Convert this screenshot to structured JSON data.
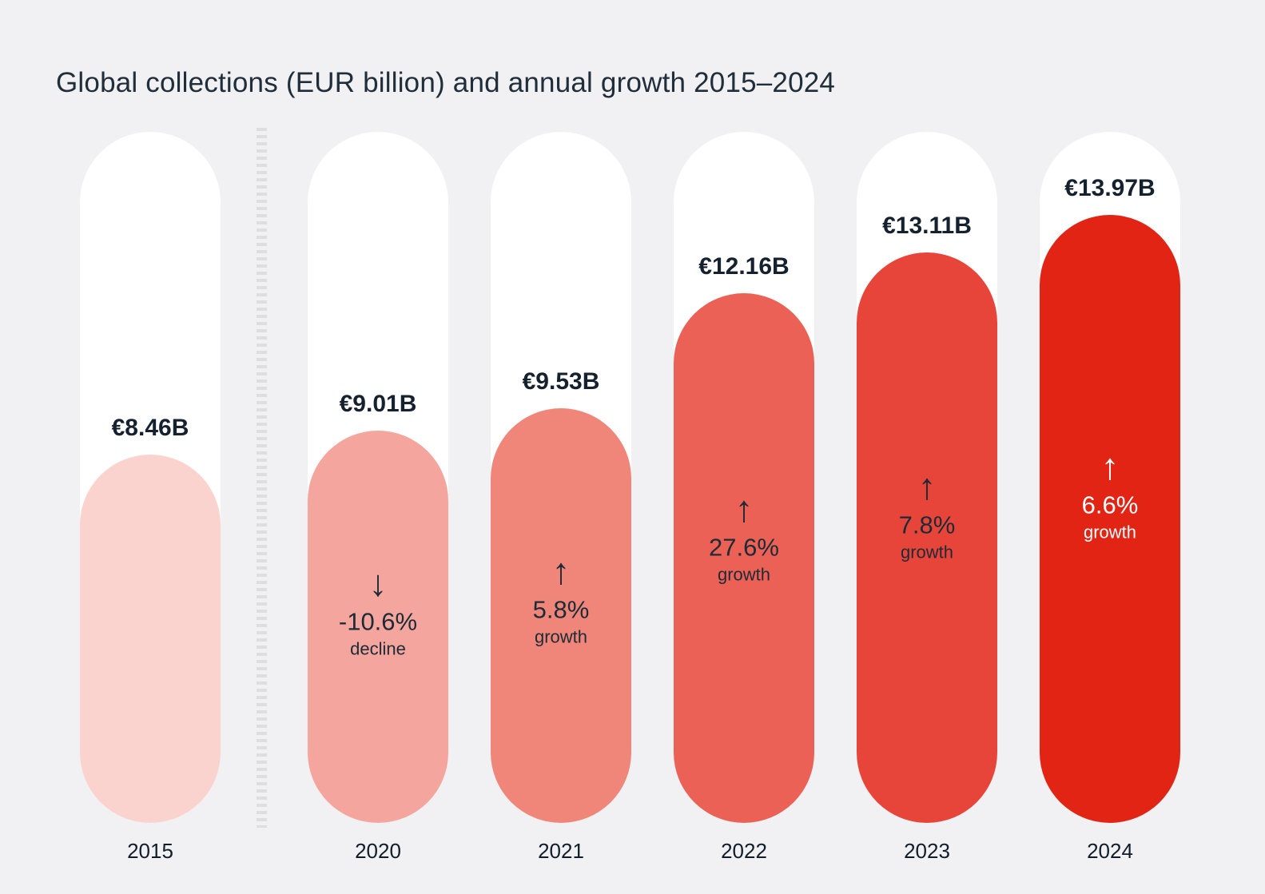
{
  "page": {
    "background_color": "#f1f0f2"
  },
  "title": "Global collections (EUR billion) and annual growth 2015–2024",
  "chart_data": {
    "type": "bar",
    "title": "Global collections (EUR billion) and annual growth 2015–2024",
    "unit": "EUR billion",
    "categories": [
      "2015",
      "2020",
      "2021",
      "2022",
      "2023",
      "2024"
    ],
    "values": [
      8.46,
      9.01,
      9.53,
      12.16,
      13.11,
      13.97
    ],
    "value_labels": [
      "€8.46B",
      "€9.01B",
      "€9.53B",
      "€12.16B",
      "€13.11B",
      "€13.97B"
    ],
    "growth_percent": [
      null,
      -10.6,
      5.8,
      27.6,
      7.8,
      6.6
    ],
    "growth_labels": [
      null,
      "-10.6%",
      "5.8%",
      "27.6%",
      "7.8%",
      "6.6%"
    ],
    "growth_words": [
      null,
      "decline",
      "growth",
      "growth",
      "growth",
      "growth"
    ],
    "arrows": [
      null,
      "down",
      "up",
      "up",
      "up",
      "up"
    ],
    "bar_colors": [
      "#fad3cf",
      "#f4a59d",
      "#f0867a",
      "#ec6156",
      "#e8453a",
      "#e22415"
    ],
    "annotation_colors": [
      null,
      "#1d2b36",
      "#1d2b36",
      "#1d2b36",
      "#1d2b36",
      "#ffffff"
    ],
    "track_color": "#ffffff",
    "axis_break_after_category": "2015",
    "ylim": [
      0,
      15.9
    ],
    "grid": false,
    "legend": false
  }
}
